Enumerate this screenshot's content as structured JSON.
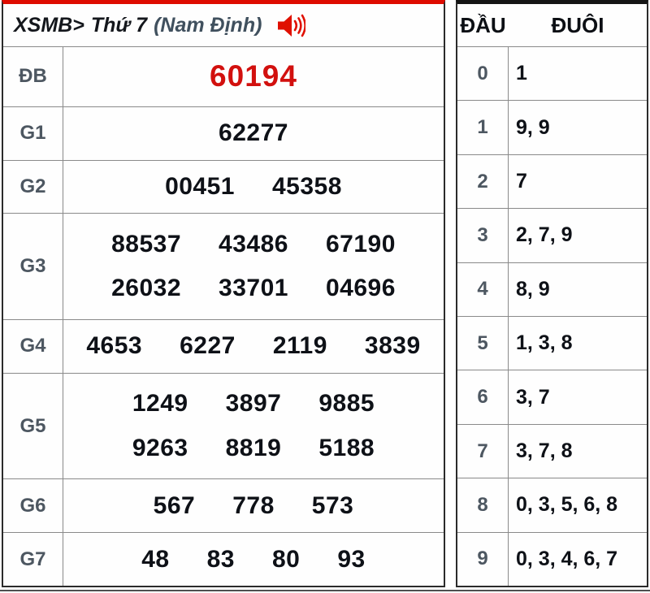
{
  "header": {
    "title": "XSMB>",
    "day": "Thứ 7",
    "station": "(Nam Định)",
    "speaker_icon": "speaker-icon",
    "dau_label": "ĐẦU",
    "duoi_label": "ĐUÔI"
  },
  "colors": {
    "accent_red": "#d2100e",
    "top_border_left": "#de0b00",
    "top_border_right": "#141414",
    "label_gray": "#4d5761",
    "text_dark": "#0e1117",
    "grid_gray": "#8a8a8a",
    "outer_border": "#2b2b2b"
  },
  "prizes": [
    {
      "label": "ĐB",
      "highlight": true,
      "units": 1,
      "rows": [
        [
          "60194"
        ]
      ]
    },
    {
      "label": "G1",
      "highlight": false,
      "units": 1,
      "rows": [
        [
          "62277"
        ]
      ]
    },
    {
      "label": "G2",
      "highlight": false,
      "units": 1,
      "rows": [
        [
          "00451",
          "45358"
        ]
      ]
    },
    {
      "label": "G3",
      "highlight": false,
      "units": 2,
      "rows": [
        [
          "88537",
          "43486",
          "67190"
        ],
        [
          "26032",
          "33701",
          "04696"
        ]
      ]
    },
    {
      "label": "G4",
      "highlight": false,
      "units": 1,
      "rows": [
        [
          "4653",
          "6227",
          "2119",
          "3839"
        ]
      ]
    },
    {
      "label": "G5",
      "highlight": false,
      "units": 2,
      "rows": [
        [
          "1249",
          "3897",
          "9885"
        ],
        [
          "9263",
          "8819",
          "5188"
        ]
      ]
    },
    {
      "label": "G6",
      "highlight": false,
      "units": 1,
      "rows": [
        [
          "567",
          "778",
          "573"
        ]
      ]
    },
    {
      "label": "G7",
      "highlight": false,
      "units": 1,
      "rows": [
        [
          "48",
          "83",
          "80",
          "93"
        ]
      ]
    }
  ],
  "dau_duoi": [
    {
      "dau": "0",
      "duoi": "1"
    },
    {
      "dau": "1",
      "duoi": "9, 9"
    },
    {
      "dau": "2",
      "duoi": "7"
    },
    {
      "dau": "3",
      "duoi": "2, 7, 9"
    },
    {
      "dau": "4",
      "duoi": "8, 9"
    },
    {
      "dau": "5",
      "duoi": "1, 3, 8"
    },
    {
      "dau": "6",
      "duoi": "3, 7"
    },
    {
      "dau": "7",
      "duoi": "3, 7, 8"
    },
    {
      "dau": "8",
      "duoi": "0, 3, 5, 6, 8"
    },
    {
      "dau": "9",
      "duoi": "0, 3, 4, 6, 7"
    }
  ]
}
